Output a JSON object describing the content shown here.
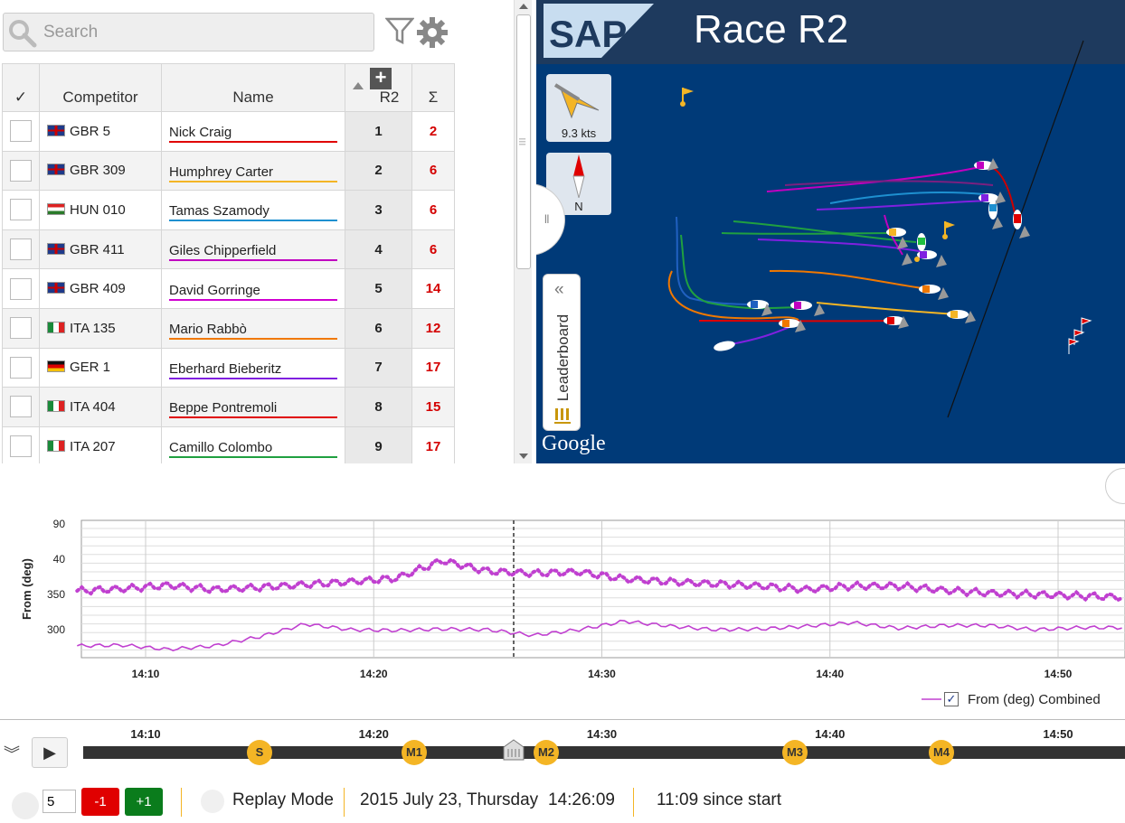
{
  "search": {
    "placeholder": "Search",
    "value": ""
  },
  "leaderboard": {
    "headers": {
      "check": "✓",
      "competitor": "Competitor",
      "name": "Name",
      "race": "R2",
      "total": "Σ"
    },
    "rows": [
      {
        "flag": "gb",
        "sail": "GBR 5",
        "name": "Nick Craig",
        "color": "#e00000",
        "rank": "1",
        "points": "2"
      },
      {
        "flag": "gb",
        "sail": "GBR 309",
        "name": "Humphrey Carter",
        "color": "#f4b525",
        "rank": "2",
        "points": "6"
      },
      {
        "flag": "hu",
        "sail": "HUN 010",
        "name": "Tamas Szamody",
        "color": "#1e90d0",
        "rank": "3",
        "points": "6"
      },
      {
        "flag": "gb",
        "sail": "GBR 411",
        "name": "Giles Chipperfield",
        "color": "#c000c0",
        "rank": "4",
        "points": "6"
      },
      {
        "flag": "gb",
        "sail": "GBR 409",
        "name": "David Gorringe",
        "color": "#d000d0",
        "rank": "5",
        "points": "14"
      },
      {
        "flag": "it",
        "sail": "ITA 135",
        "name": "Mario Rabbò",
        "color": "#f07800",
        "rank": "6",
        "points": "12"
      },
      {
        "flag": "de",
        "sail": "GER 1",
        "name": "Eberhard Bieberitz",
        "color": "#8020e0",
        "rank": "7",
        "points": "17"
      },
      {
        "flag": "it",
        "sail": "ITA 404",
        "name": "Beppe Pontremoli",
        "color": "#e00000",
        "rank": "8",
        "points": "15"
      },
      {
        "flag": "it",
        "sail": "ITA 207",
        "name": "Camillo Colombo",
        "color": "#20a040",
        "rank": "9",
        "points": "17"
      }
    ]
  },
  "map": {
    "title": "Race R2",
    "brand": "SAP",
    "wind_speed": "9.3 kts",
    "compass_label": "N",
    "leaderboard_tab": "Leaderboard",
    "map_provider": "Google"
  },
  "chart": {
    "ylabel": "From (deg)",
    "yticks": [
      "90",
      "40",
      "350",
      "300"
    ],
    "xticks": [
      "14:10",
      "14:20",
      "14:30",
      "14:40",
      "14:50"
    ],
    "legend": "From (deg) Combined",
    "legend_checked": true,
    "series_color": "#c040d0"
  },
  "chart_data": {
    "type": "line",
    "ylabel": "From (deg)",
    "series": [
      {
        "name": "From (deg) Combined",
        "style": "solid",
        "x": [
          "14:07",
          "14:09",
          "14:11",
          "14:13",
          "14:15",
          "14:17",
          "14:19",
          "14:21",
          "14:23",
          "14:25",
          "14:27",
          "14:29",
          "14:31",
          "14:33",
          "14:35",
          "14:37",
          "14:39",
          "14:41",
          "14:43",
          "14:45",
          "14:47",
          "14:49",
          "14:51",
          "14:53"
        ],
        "y": [
          277,
          278,
          272,
          277,
          290,
          308,
          300,
          299,
          301,
          300,
          292,
          300,
          312,
          305,
          300,
          301,
          305,
          310,
          302,
          306,
          306,
          300,
          303,
          303
        ]
      },
      {
        "style": "dotted",
        "x": [
          "14:07",
          "14:09",
          "14:11",
          "14:13",
          "14:15",
          "14:17",
          "14:19",
          "14:21",
          "14:23",
          "14:25",
          "14:27",
          "14:29",
          "14:31",
          "14:33",
          "14:35",
          "14:37",
          "14:39",
          "14:41",
          "14:43",
          "14:45",
          "14:47",
          "14:49",
          "14:51",
          "14:53"
        ],
        "y": [
          355,
          358,
          363,
          357,
          360,
          364,
          368,
          373,
          398,
          383,
          380,
          382,
          372,
          368,
          365,
          362,
          357,
          362,
          362,
          356,
          352,
          350,
          348,
          346
        ]
      }
    ]
  },
  "timeline": {
    "ticks": [
      "14:10",
      "14:20",
      "14:30",
      "14:40",
      "14:50"
    ],
    "marks": [
      "S",
      "M1",
      "M2",
      "M3",
      "M4"
    ]
  },
  "controls": {
    "speed_value": "5",
    "minus_label": "-1",
    "plus_label": "+1",
    "mode": "Replay Mode",
    "date": "2015 July 23, Thursday",
    "time": "14:26:09",
    "elapsed": "11:09 since start"
  }
}
